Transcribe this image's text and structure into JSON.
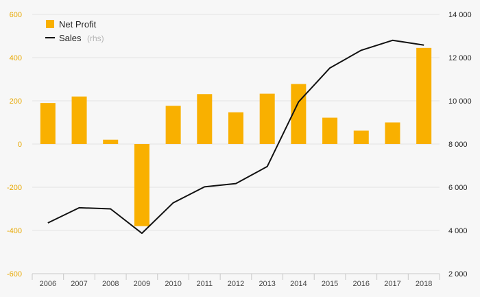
{
  "chart_data": {
    "type": "bar-line",
    "title": "",
    "categories": [
      "2006",
      "2007",
      "2008",
      "2009",
      "2010",
      "2011",
      "2012",
      "2013",
      "2014",
      "2015",
      "2016",
      "2017",
      "2018"
    ],
    "series": [
      {
        "name": "Net Profit",
        "type": "bar",
        "axis": "left",
        "color": "#f9b000",
        "values": [
          190,
          220,
          20,
          -380,
          177,
          231,
          147,
          233,
          278,
          122,
          62,
          100,
          445
        ]
      },
      {
        "name": "Sales",
        "name_suffix": "(rhs)",
        "type": "line",
        "axis": "right",
        "color": "#111111",
        "values": [
          4350,
          5050,
          5000,
          3870,
          5280,
          6020,
          6170,
          6960,
          9950,
          11520,
          12340,
          12800,
          12580
        ]
      }
    ],
    "y_left": {
      "min": -600,
      "max": 600,
      "ticks": [
        600,
        400,
        200,
        0,
        -200,
        -400,
        -600
      ],
      "tick_labels": [
        "600",
        "400",
        "200",
        "0",
        "-200",
        "-400",
        "-600"
      ]
    },
    "y_right": {
      "min": 2000,
      "max": 14000,
      "ticks": [
        14000,
        12000,
        10000,
        8000,
        6000,
        4000,
        2000
      ],
      "tick_labels": [
        "14 000",
        "12 000",
        "10 000",
        "8 000",
        "6 000",
        "4 000",
        "2 000"
      ]
    },
    "grid": true,
    "legend_position": "top-left",
    "colors": {
      "left_axis_text": "#e8a800",
      "grid": "#e3e3e3",
      "axis_line": "#c8c8c8"
    }
  }
}
